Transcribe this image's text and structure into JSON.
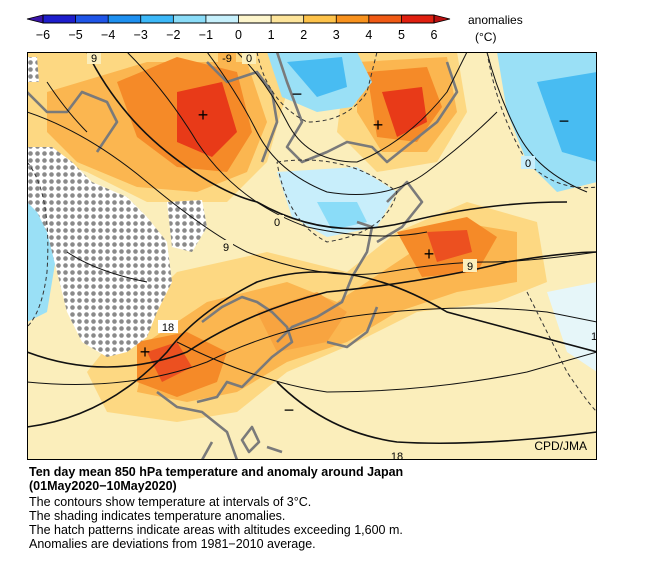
{
  "legend": {
    "ticks": [
      "−6",
      "−5",
      "−4",
      "−3",
      "−2",
      "−1",
      "0",
      "1",
      "2",
      "3",
      "4",
      "5",
      "6"
    ],
    "title_line1": "anomalies",
    "title_line2": "(°C)",
    "colors": [
      "#1e1ecc",
      "#1f55e8",
      "#1e90f0",
      "#3cb8f8",
      "#8adcf8",
      "#c6f0fc",
      "#fdf5cc",
      "#fde49a",
      "#fdc24a",
      "#f8921e",
      "#f05a14",
      "#e02010"
    ]
  },
  "map": {
    "credit": "CPD/JMA",
    "contour_labels": [
      "9",
      "-9",
      "0",
      "0",
      "9",
      "9",
      "18",
      "18",
      "0",
      "1"
    ],
    "symbols": [
      "+",
      "+",
      "+",
      "+",
      "−",
      "−",
      "−"
    ]
  },
  "caption": {
    "title_line1": "Ten day mean 850 hPa temperature and anomaly around Japan",
    "title_line2": "(01May2020−10May2020)",
    "lines": [
      "The contours show temperature at intervals of 3°C.",
      "The shading indicates temperature anomalies.",
      "The hatch patterns indicate areas with altitudes exceeding 1,600 m.",
      "Anomalies are deviations from 1981−2010 average."
    ]
  }
}
